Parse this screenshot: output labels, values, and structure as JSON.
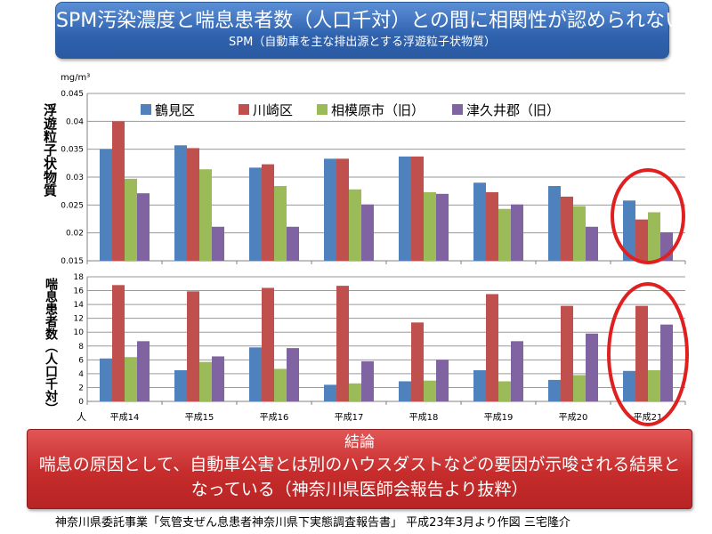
{
  "header": {
    "title": "SPM汚染濃度と喘息患者数（人口千対）との間に相関性が認められない",
    "subtitle": "SPM（自動車を主な排出源とする浮遊粒子状物質）"
  },
  "top_axis_label": "浮遊粒子状物質",
  "top_unit": "mg/m³",
  "bottom_axis_label": "喘息患者数（人口千対）",
  "bottom_unit": "人",
  "conclusion": {
    "heading": "結論",
    "body": "喘息の原因として、自動車公害とは別のハウスダストなどの要因が示唆される結果となっている（神奈川県医師会報告より抜粋）"
  },
  "source": "神奈川県委託事業「気管支ぜん息患者神奈川県下実態調査報告書」 平成23年3月より作図 三宅隆介",
  "colors": {
    "s0": "#4f81bd",
    "s1": "#c0504d",
    "s2": "#9bbb59",
    "s3": "#8064a2",
    "circle": "#e02020"
  },
  "chart_data": [
    {
      "type": "bar",
      "categories": [
        "平成14",
        "平成15",
        "平成16",
        "平成17",
        "平成18",
        "平成19",
        "平成20",
        "平成21"
      ],
      "series": [
        {
          "name": "鶴見区",
          "values": [
            0.035,
            0.0357,
            0.0317,
            0.0333,
            0.0337,
            0.029,
            0.0284,
            0.0258
          ]
        },
        {
          "name": "川崎区",
          "values": [
            0.04,
            0.0352,
            0.0323,
            0.0333,
            0.0337,
            0.0273,
            0.0265,
            0.0224
          ]
        },
        {
          "name": "相模原市（旧）",
          "values": [
            0.0297,
            0.0314,
            0.0284,
            0.0278,
            0.0273,
            0.0243,
            0.0248,
            0.0237
          ]
        },
        {
          "name": "津久井郡（旧）",
          "values": [
            0.0271,
            0.0211,
            0.0211,
            0.0251,
            0.027,
            0.0251,
            0.0211,
            0.0201
          ]
        }
      ],
      "ylabel": "浮遊粒子状物質",
      "unit": "mg/m³",
      "ylim": [
        0.015,
        0.045
      ],
      "yticks": [
        "0.015",
        "0.02",
        "0.025",
        "0.03",
        "0.035",
        "0.04",
        "0.045"
      ],
      "grid": true,
      "legend": "top"
    },
    {
      "type": "bar",
      "categories": [
        "平成14",
        "平成15",
        "平成16",
        "平成17",
        "平成18",
        "平成19",
        "平成20",
        "平成21"
      ],
      "series": [
        {
          "name": "鶴見区",
          "values": [
            6.2,
            4.5,
            7.8,
            2.4,
            2.9,
            4.5,
            3.1,
            4.4
          ]
        },
        {
          "name": "川崎区",
          "values": [
            16.8,
            15.9,
            16.4,
            16.7,
            11.4,
            15.5,
            13.8,
            13.8
          ]
        },
        {
          "name": "相模原市（旧）",
          "values": [
            6.4,
            5.7,
            4.7,
            2.6,
            3.0,
            2.9,
            3.8,
            4.5
          ]
        },
        {
          "name": "津久井郡（旧）",
          "values": [
            8.7,
            6.5,
            7.7,
            5.8,
            6.0,
            8.7,
            9.8,
            11.1
          ]
        }
      ],
      "ylabel": "喘息患者数（人口千対）",
      "unit": "人",
      "ylim": [
        0,
        18
      ],
      "yticks": [
        "0",
        "2",
        "4",
        "6",
        "8",
        "10",
        "12",
        "14",
        "16",
        "18"
      ],
      "grid": true
    }
  ]
}
